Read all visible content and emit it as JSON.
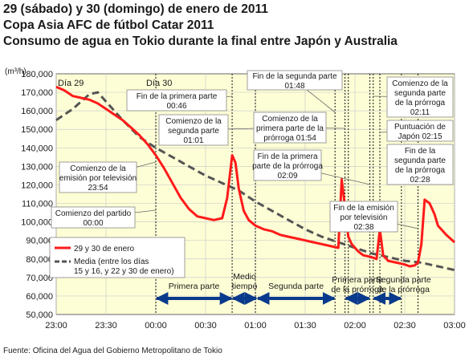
{
  "titles": [
    "29 (sábado) y 30 (domingo) de enero de 2011",
    "Copa Asia AFC de fútbol Catar 2011",
    "Consumo de agua en Tokio durante la final entre Japón y Australia"
  ],
  "source": "Fuente: Oficina del Agua del Gobierno Metropolitano de Tokio",
  "colors": {
    "actual": "#ff1a1a",
    "average": "#555555",
    "plot_bg": "#fefed6",
    "arrow": "#0a3a8c"
  },
  "chart_data": {
    "type": "line",
    "unit_label": "(m³/h)",
    "ylim": [
      50000,
      180000
    ],
    "y_ticks": [
      "50,000",
      "60,000",
      "70,000",
      "80,000",
      "90,000",
      "100,000",
      "110,000",
      "120,000",
      "130,000",
      "140,000",
      "150,000",
      "160,000",
      "170,000",
      "180,000"
    ],
    "y_tick_values": [
      50000,
      60000,
      70000,
      80000,
      90000,
      100000,
      110000,
      120000,
      130000,
      140000,
      150000,
      160000,
      170000,
      180000
    ],
    "xlim": [
      0,
      240
    ],
    "x_ticks": [
      "23:00",
      "23:30",
      "00:00",
      "00:30",
      "01:00",
      "01:30",
      "02:00",
      "02:30",
      "03:00"
    ],
    "x_tick_values": [
      0,
      30,
      60,
      90,
      120,
      150,
      180,
      210,
      240
    ],
    "day_labels": [
      {
        "text": "Día 29",
        "x": 0
      },
      {
        "text": "Día 30",
        "x": 60
      }
    ],
    "legend": [
      "29 y 30 de enero",
      "Media (entre los días\n15 y 16, y 22 y 30 de enero)"
    ],
    "series": [
      {
        "name": "29 y 30 de enero",
        "x": [
          0,
          5,
          10,
          15,
          20,
          25,
          30,
          35,
          40,
          45,
          50,
          55,
          60,
          65,
          70,
          75,
          80,
          85,
          90,
          95,
          100,
          103,
          106,
          108,
          110,
          113,
          116,
          120,
          125,
          130,
          135,
          140,
          145,
          150,
          155,
          160,
          165,
          170,
          172,
          174,
          176,
          178,
          180,
          182,
          185,
          190,
          193,
          195,
          197,
          200,
          205,
          210,
          213,
          216,
          218,
          220,
          222,
          225,
          228,
          230,
          235,
          240
        ],
        "y": [
          173000,
          171000,
          168000,
          167000,
          166000,
          164000,
          161000,
          158000,
          155000,
          151000,
          147000,
          142000,
          136000,
          129000,
          121000,
          113000,
          107000,
          103000,
          102000,
          101000,
          102000,
          113000,
          136000,
          132000,
          118000,
          106000,
          101000,
          98000,
          96000,
          95000,
          93000,
          92000,
          91000,
          90000,
          89000,
          88000,
          87000,
          86000,
          123000,
          108000,
          92000,
          88000,
          86000,
          84000,
          82000,
          81000,
          80000,
          96000,
          82000,
          79000,
          78000,
          77000,
          76000,
          76500,
          78000,
          88000,
          112000,
          110000,
          104000,
          98000,
          93000,
          89000
        ]
      },
      {
        "name": "Media (entre los días\n15 y 16, y 22 y 30 de enero)",
        "x": [
          0,
          10,
          20,
          25,
          30,
          40,
          50,
          60,
          70,
          80,
          90,
          100,
          110,
          120,
          130,
          140,
          150,
          160,
          170,
          180,
          190,
          200,
          210,
          220,
          230,
          240
        ],
        "y": [
          155000,
          161000,
          169000,
          170000,
          165000,
          155000,
          146000,
          140000,
          135000,
          130000,
          125000,
          121000,
          117000,
          111000,
          106000,
          101000,
          96000,
          92000,
          89000,
          86000,
          83000,
          81000,
          79000,
          78000,
          76000,
          74000
        ]
      }
    ],
    "event_lines": [
      60,
      106,
      120,
      168,
      174,
      176,
      189,
      191,
      195,
      208,
      218
    ],
    "annotations": [
      {
        "lines": [
          "Fin de la primera parte",
          "00:46"
        ]
      },
      {
        "lines": [
          "Comienzo de la",
          "segunda parte",
          "01:01"
        ]
      },
      {
        "lines": [
          "Fin de la segunda parte",
          "01:48"
        ]
      },
      {
        "lines": [
          "Comienzo de la",
          "primera parte de la",
          "prórroga 01:54"
        ]
      },
      {
        "lines": [
          "Fin de la primera",
          "parte de la prórroga",
          "02:09"
        ]
      },
      {
        "lines": [
          "Comienzo de la",
          "segunda parte",
          "de la prórroga",
          "02:11"
        ]
      },
      {
        "lines": [
          "Puntuación de",
          "Japón 02:15"
        ]
      },
      {
        "lines": [
          "Fin de la",
          "segunda parte",
          "de la prórroga",
          "02:28"
        ]
      },
      {
        "lines": [
          "Fin de la emisión",
          "por televisión",
          "02:38"
        ]
      },
      {
        "lines": [
          "Comienzo de la",
          "emisión por televisión",
          "23:54"
        ]
      },
      {
        "lines": [
          "Comienzo del partido",
          "00:00"
        ]
      }
    ],
    "periods": [
      {
        "lines": [
          "Primera parte"
        ],
        "from": 60,
        "to": 106
      },
      {
        "lines": [
          "Medio",
          "tiempo"
        ],
        "from": 106,
        "to": 121
      },
      {
        "lines": [
          "Segunda parte"
        ],
        "from": 121,
        "to": 168
      },
      {
        "lines": [
          "Primera parte",
          "de la prórroga"
        ],
        "from": 174,
        "to": 189
      },
      {
        "lines": [
          "Segunda parte",
          "de la prórroga"
        ],
        "from": 191,
        "to": 208
      }
    ]
  }
}
